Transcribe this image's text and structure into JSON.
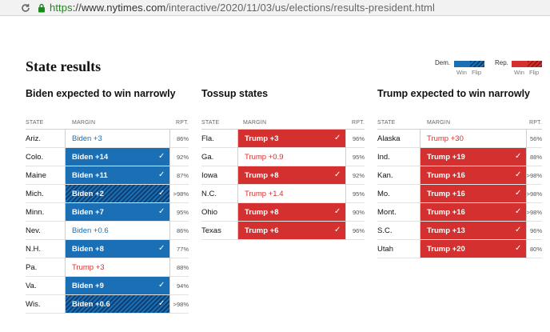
{
  "browser": {
    "url_https": "https",
    "url_host": "://www.nytimes.com",
    "url_path": "/interactive/2020/11/03/us/elections/results-president.html"
  },
  "page": {
    "title": "State results"
  },
  "legend": {
    "dem_label": "Dem.",
    "rep_label": "Rep.",
    "win": "Win",
    "flip": "Flip",
    "colors": {
      "dem": "#1a6fb5",
      "rep": "#d3302f"
    }
  },
  "columns": {
    "state": "STATE",
    "margin": "MARGIN",
    "rpt": "RPT."
  },
  "panels": [
    {
      "heading": "Biden expected to win narrowly",
      "rows": [
        {
          "state": "Ariz.",
          "margin": "Biden +3",
          "rpt": "86%",
          "party": "dem",
          "style": "none"
        },
        {
          "state": "Colo.",
          "margin": "Biden +14",
          "rpt": "92%",
          "party": "dem",
          "style": "win"
        },
        {
          "state": "Maine",
          "margin": "Biden +11",
          "rpt": "87%",
          "party": "dem",
          "style": "win"
        },
        {
          "state": "Mich.",
          "margin": "Biden +2",
          "rpt": ">98%",
          "party": "dem",
          "style": "flip"
        },
        {
          "state": "Minn.",
          "margin": "Biden +7",
          "rpt": "95%",
          "party": "dem",
          "style": "win"
        },
        {
          "state": "Nev.",
          "margin": "Biden +0.6",
          "rpt": "86%",
          "party": "dem",
          "style": "none"
        },
        {
          "state": "N.H.",
          "margin": "Biden +8",
          "rpt": "77%",
          "party": "dem",
          "style": "win"
        },
        {
          "state": "Pa.",
          "margin": "Trump +3",
          "rpt": "88%",
          "party": "rep",
          "style": "none"
        },
        {
          "state": "Va.",
          "margin": "Biden +9",
          "rpt": "94%",
          "party": "dem",
          "style": "win"
        },
        {
          "state": "Wis.",
          "margin": "Biden +0.6",
          "rpt": ">98%",
          "party": "dem",
          "style": "flip"
        }
      ]
    },
    {
      "heading": "Tossup states",
      "rows": [
        {
          "state": "Fla.",
          "margin": "Trump +3",
          "rpt": "96%",
          "party": "rep",
          "style": "win"
        },
        {
          "state": "Ga.",
          "margin": "Trump +0.9",
          "rpt": "95%",
          "party": "rep",
          "style": "none"
        },
        {
          "state": "Iowa",
          "margin": "Trump +8",
          "rpt": "92%",
          "party": "rep",
          "style": "win"
        },
        {
          "state": "N.C.",
          "margin": "Trump +1.4",
          "rpt": "95%",
          "party": "rep",
          "style": "none"
        },
        {
          "state": "Ohio",
          "margin": "Trump +8",
          "rpt": "90%",
          "party": "rep",
          "style": "win"
        },
        {
          "state": "Texas",
          "margin": "Trump +6",
          "rpt": "96%",
          "party": "rep",
          "style": "win"
        }
      ]
    },
    {
      "heading": "Trump expected to win narrowly",
      "rows": [
        {
          "state": "Alaska",
          "margin": "Trump +30",
          "rpt": "56%",
          "party": "rep",
          "style": "none"
        },
        {
          "state": "Ind.",
          "margin": "Trump +19",
          "rpt": "88%",
          "party": "rep",
          "style": "win"
        },
        {
          "state": "Kan.",
          "margin": "Trump +16",
          "rpt": ">98%",
          "party": "rep",
          "style": "win"
        },
        {
          "state": "Mo.",
          "margin": "Trump +16",
          "rpt": ">98%",
          "party": "rep",
          "style": "win"
        },
        {
          "state": "Mont.",
          "margin": "Trump +16",
          "rpt": ">98%",
          "party": "rep",
          "style": "win"
        },
        {
          "state": "S.C.",
          "margin": "Trump +13",
          "rpt": "96%",
          "party": "rep",
          "style": "win"
        },
        {
          "state": "Utah",
          "margin": "Trump +20",
          "rpt": "80%",
          "party": "rep",
          "style": "win"
        }
      ]
    }
  ]
}
